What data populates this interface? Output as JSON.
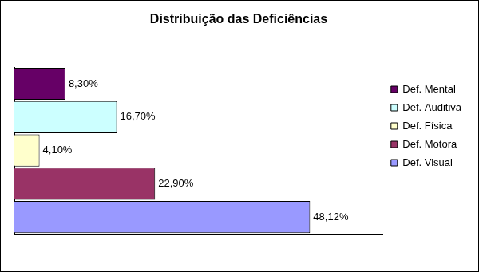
{
  "chart_data": {
    "type": "bar",
    "title": "Distribuição das Deficiências",
    "orientation": "horizontal",
    "categories": [
      "Def. Mental",
      "Def. Auditiva",
      "Def. Física",
      "Def. Motora",
      "Def. Visual"
    ],
    "values": [
      8.3,
      16.7,
      4.1,
      22.9,
      48.12
    ],
    "value_labels": [
      "8,30%",
      "16,70%",
      "4,10%",
      "22,90%",
      "48,12%"
    ],
    "colors": [
      "#660066",
      "#ccffff",
      "#ffffcc",
      "#993366",
      "#9999ff"
    ],
    "xlim": [
      0,
      60
    ],
    "grid": false,
    "legend": "right",
    "data_labels": true,
    "tick_labels": false
  }
}
